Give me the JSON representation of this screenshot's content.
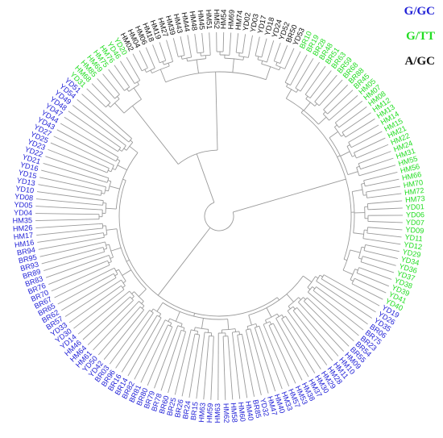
{
  "legend": [
    {
      "label": "G/GC",
      "color": "#1f1fd6"
    },
    {
      "label": "G/TT",
      "color": "#22dd22"
    },
    {
      "label": "A/GC",
      "color": "#111111"
    }
  ],
  "tree": {
    "type": "circular-dendrogram",
    "branch_color": "#9a9a9a",
    "leaf_groups": [
      {
        "color": "#111111",
        "labels": [
          "HM02",
          "HM04",
          "HM06",
          "HM18",
          "HM19",
          "HM27",
          "HM39",
          "HM43",
          "HM44",
          "HM48",
          "HM45",
          "HM51",
          "HM52",
          "HM54",
          "HM69",
          "HM74",
          "YD02",
          "YD03",
          "YD17",
          "YD18",
          "YD24",
          "YD52",
          "BR50",
          "YD53"
        ]
      },
      {
        "color": "#22dd22",
        "labels": [
          "BR10",
          "BR19",
          "BR28",
          "BR48",
          "BR51",
          "BR63",
          "BR59",
          "BR68",
          "BR88",
          "BR45",
          "HM05",
          "HM07",
          "HM08",
          "HM12",
          "HM13",
          "HM14",
          "HM15",
          "HM21",
          "HM22",
          "HM24",
          "HM31",
          "HM55",
          "HM56",
          "HM66",
          "HM70",
          "HM72",
          "HM73",
          "YD01",
          "YD06",
          "YD07",
          "YD09",
          "YD11",
          "YD12",
          "YD29",
          "YD34",
          "YD36",
          "YD37",
          "YD38",
          "YD39",
          "YD41",
          "YD40"
        ]
      },
      {
        "color": "#1f1fd6",
        "labels": [
          "YD19",
          "YD26",
          "YD35",
          "BR06",
          "BR75",
          "BR23",
          "BR54",
          "BR55",
          "HM09",
          "HM10",
          "HM11",
          "HM28",
          "HM29",
          "HM30",
          "HM37",
          "HM38",
          "HM53",
          "HM57",
          "HM33",
          "HM40",
          "HM47",
          "YD32",
          "BR85",
          "HM40",
          "HM60",
          "HM58",
          "HM62",
          "HM63",
          "HM59",
          "HM63",
          "BR15",
          "BR24",
          "BR26",
          "BR25",
          "BR60",
          "BR78",
          "BR79",
          "BR80",
          "BR81",
          "BR82",
          "BR14",
          "BR16",
          "BR96",
          "BR03",
          "YD42",
          "YD50",
          "HM61",
          "HM64",
          "HM46",
          "YD14",
          "YD30",
          "YD33",
          "BR57",
          "BR62",
          "BR65",
          "BR67",
          "BR70",
          "BR76",
          "BR83",
          "BR89",
          "BR93",
          "BR95",
          "BR94",
          "HM16",
          "HM17",
          "HM26",
          "HM35",
          "YD04",
          "YD05",
          "YD08",
          "YD10",
          "YD13",
          "YD15",
          "YD16",
          "YD21",
          "YD22",
          "YD23",
          "YD25",
          "YD27",
          "YD43",
          "YD44",
          "YD47",
          "YD48",
          "YD49",
          "YD54",
          "YD51"
        ]
      },
      {
        "color": "#22dd22",
        "labels": [
          "YD31",
          "HM68",
          "HM85",
          "HM69",
          "HM75",
          "HM76",
          "YD46",
          "YD20"
        ]
      }
    ]
  }
}
